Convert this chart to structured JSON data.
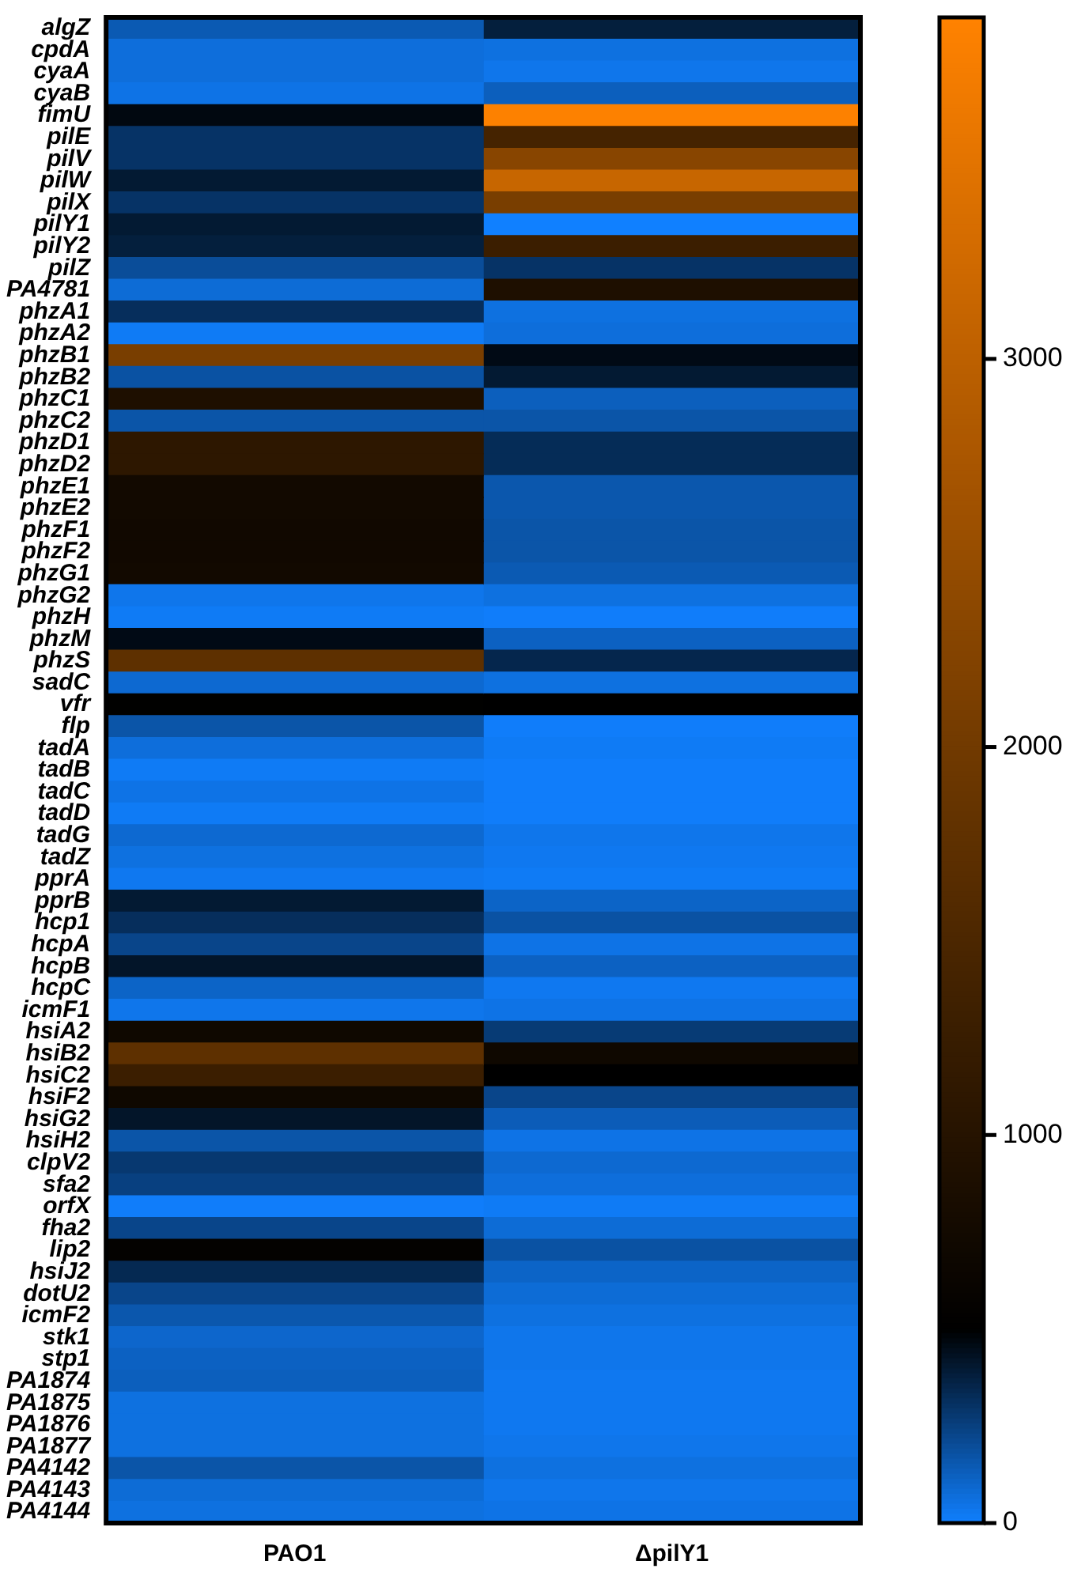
{
  "chart_data": {
    "type": "heatmap",
    "categories": [
      "PAO1",
      "ΔpilY1"
    ],
    "y_categories": [
      "algZ",
      "cpdA",
      "cyaA",
      "cyaB",
      "fimU",
      "pilE",
      "pilV",
      "pilW",
      "pilX",
      "pilY1",
      "pilY2",
      "pilZ",
      "PA4781",
      "phzA1",
      "phzA2",
      "phzB1",
      "phzB2",
      "phzC1",
      "phzC2",
      "phzD1",
      "phzD2",
      "phzE1",
      "phzE2",
      "phzF1",
      "phzF2",
      "phzG1",
      "phzG2",
      "phzH",
      "phzM",
      "phzS",
      "sadC",
      "vfr",
      "flp",
      "tadA",
      "tadB",
      "tadC",
      "tadD",
      "tadG",
      "tadZ",
      "pprA",
      "pprB",
      "hcp1",
      "hcpA",
      "hcpB",
      "hcpC",
      "icmF1",
      "hsiA2",
      "hsiB2",
      "hsiC2",
      "hsiF2",
      "hsiG2",
      "hsiH2",
      "clpV2",
      "sfa2",
      "orfX",
      "fha2",
      "lip2",
      "hsiJ2",
      "dotU2",
      "icmF2",
      "stk1",
      "stp1",
      "PA1874",
      "PA1875",
      "PA1876",
      "PA1877",
      "PA4142",
      "PA4143",
      "PA4144"
    ],
    "cells": [
      [
        150,
        380
      ],
      [
        70,
        60
      ],
      [
        70,
        40
      ],
      [
        50,
        130
      ],
      [
        470,
        3850
      ],
      [
        300,
        1420
      ],
      [
        300,
        2300
      ],
      [
        400,
        3140
      ],
      [
        300,
        2100
      ],
      [
        400,
        0
      ],
      [
        380,
        1280
      ],
      [
        200,
        300
      ],
      [
        80,
        900
      ],
      [
        320,
        60
      ],
      [
        20,
        70
      ],
      [
        2100,
        460
      ],
      [
        180,
        400
      ],
      [
        900,
        130
      ],
      [
        170,
        170
      ],
      [
        1100,
        330
      ],
      [
        1100,
        330
      ],
      [
        740,
        160
      ],
      [
        740,
        160
      ],
      [
        720,
        170
      ],
      [
        720,
        170
      ],
      [
        740,
        150
      ],
      [
        40,
        60
      ],
      [
        20,
        10
      ],
      [
        460,
        120
      ],
      [
        1750,
        350
      ],
      [
        90,
        60
      ],
      [
        520,
        500
      ],
      [
        170,
        10
      ],
      [
        70,
        20
      ],
      [
        20,
        10
      ],
      [
        50,
        10
      ],
      [
        20,
        10
      ],
      [
        90,
        40
      ],
      [
        60,
        30
      ],
      [
        30,
        20
      ],
      [
        400,
        110
      ],
      [
        320,
        180
      ],
      [
        230,
        50
      ],
      [
        420,
        120
      ],
      [
        110,
        30
      ],
      [
        40,
        50
      ],
      [
        700,
        270
      ],
      [
        1750,
        700
      ],
      [
        1280,
        500
      ],
      [
        700,
        230
      ],
      [
        420,
        140
      ],
      [
        170,
        50
      ],
      [
        280,
        90
      ],
      [
        250,
        70
      ],
      [
        10,
        20
      ],
      [
        230,
        80
      ],
      [
        550,
        180
      ],
      [
        340,
        110
      ],
      [
        230,
        80
      ],
      [
        160,
        60
      ],
      [
        100,
        40
      ],
      [
        120,
        40
      ],
      [
        130,
        30
      ],
      [
        60,
        30
      ],
      [
        60,
        30
      ],
      [
        60,
        40
      ],
      [
        170,
        60
      ],
      [
        80,
        40
      ],
      [
        60,
        50
      ]
    ],
    "clim": [
      0,
      3880
    ],
    "cticks": [
      0,
      1000,
      2000,
      3000
    ]
  }
}
